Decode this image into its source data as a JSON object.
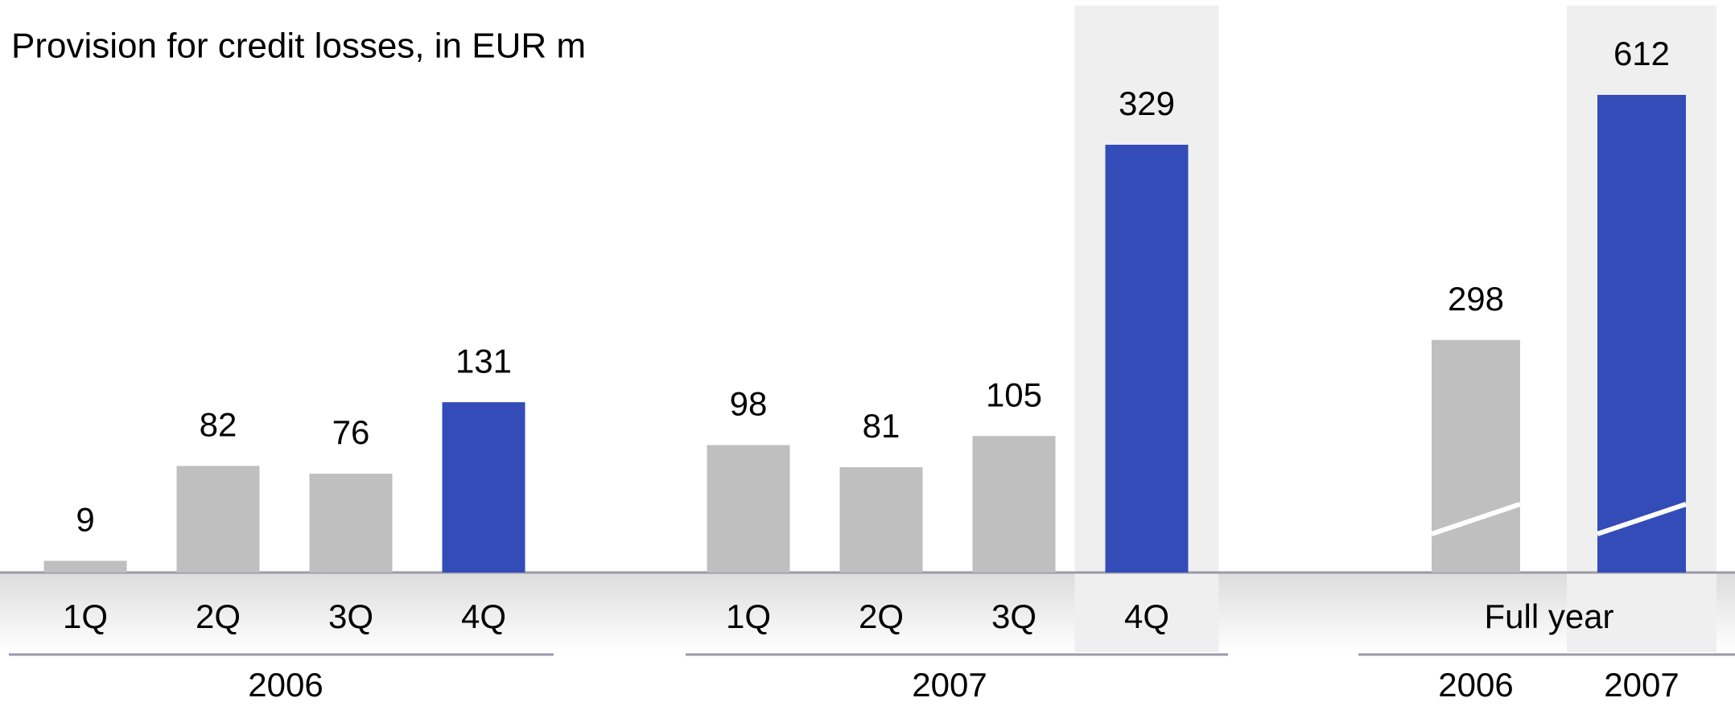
{
  "chart_data": {
    "type": "bar",
    "title": "Provision for credit losses, in EUR m",
    "groups": [
      {
        "label": "2006",
        "categories": [
          "1Q",
          "2Q",
          "3Q",
          "4Q"
        ],
        "values": [
          9,
          82,
          76,
          131
        ],
        "colors": [
          "#bfbfbf",
          "#bfbfbf",
          "#bfbfbf",
          "#334cb8"
        ],
        "highlighted": [
          false,
          false,
          false,
          false
        ]
      },
      {
        "label": "2007",
        "categories": [
          "1Q",
          "2Q",
          "3Q",
          "4Q"
        ],
        "values": [
          98,
          81,
          105,
          329
        ],
        "colors": [
          "#bfbfbf",
          "#bfbfbf",
          "#bfbfbf",
          "#334cb8"
        ],
        "highlighted": [
          false,
          false,
          false,
          true
        ]
      },
      {
        "label": "Full year",
        "categories": [
          "2006",
          "2007"
        ],
        "values": [
          298,
          612
        ],
        "colors": [
          "#bfbfbf",
          "#334cb8"
        ],
        "highlighted": [
          false,
          true
        ],
        "broken": true
      }
    ]
  }
}
